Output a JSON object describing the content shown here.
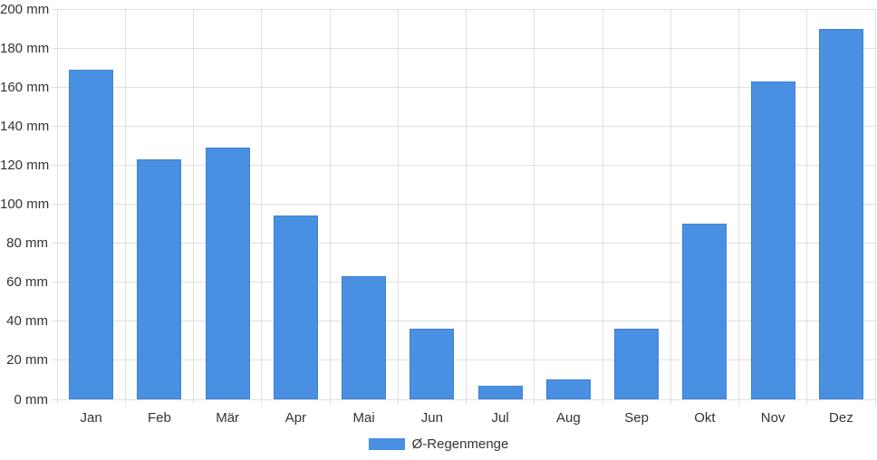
{
  "colors": {
    "bar": "#4a90e2",
    "bar_border": "#3d80d6",
    "grid": "#e0e0e0",
    "text": "#333333",
    "background": "#ffffff"
  },
  "chart_data": {
    "type": "bar",
    "title": "",
    "xlabel": "",
    "ylabel": "",
    "unit": "mm",
    "categories": [
      "Jan",
      "Feb",
      "Mär",
      "Apr",
      "Mai",
      "Jun",
      "Jul",
      "Aug",
      "Sep",
      "Okt",
      "Nov",
      "Dez"
    ],
    "values": [
      169,
      123,
      129,
      94,
      63,
      36,
      7,
      10,
      36,
      90,
      163,
      190
    ],
    "series": [
      {
        "name": "Ø-Regenmenge",
        "values": [
          169,
          123,
          129,
          94,
          63,
          36,
          7,
          10,
          36,
          90,
          163,
          190
        ]
      }
    ],
    "ylim": [
      0,
      200
    ],
    "ytick_step": 20,
    "y_tick_labels": [
      "0 mm",
      "20 mm",
      "40 mm",
      "60 mm",
      "80 mm",
      "100 mm",
      "120 mm",
      "140 mm",
      "160 mm",
      "180 mm",
      "200 mm"
    ],
    "grid": true,
    "legend": {
      "label": "Ø-Regenmenge",
      "position": "bottom"
    }
  }
}
